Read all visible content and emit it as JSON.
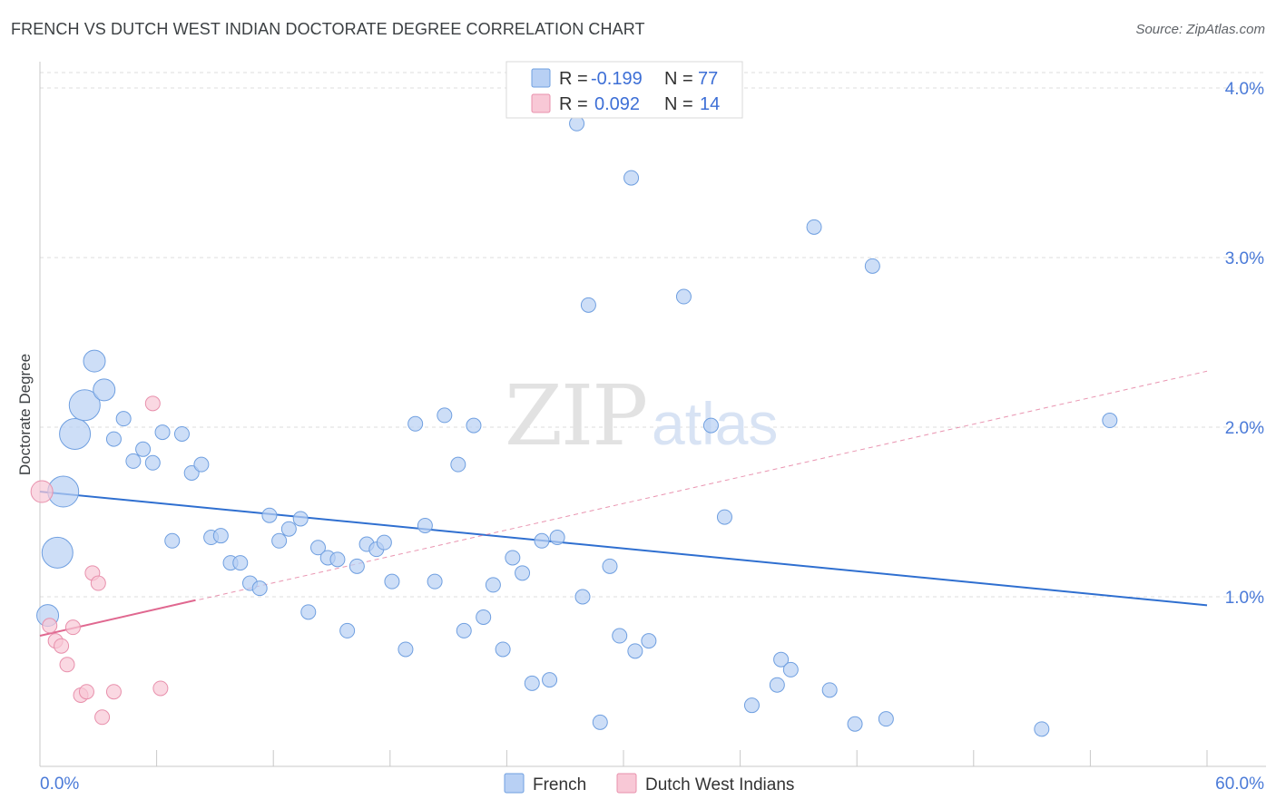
{
  "title": "FRENCH VS DUTCH WEST INDIAN DOCTORATE DEGREE CORRELATION CHART",
  "source": "Source: ZipAtlas.com",
  "chart_data": {
    "type": "scatter",
    "title": "FRENCH VS DUTCH WEST INDIAN DOCTORATE DEGREE CORRELATION CHART",
    "xlabel": "",
    "ylabel": "Doctorate Degree",
    "xlim": [
      0,
      60
    ],
    "ylim": [
      0,
      4.15
    ],
    "x_tick_labels": [
      "0.0%",
      "60.0%"
    ],
    "y_ticks": [
      1.0,
      2.0,
      3.0,
      4.0
    ],
    "y_tick_labels": [
      "1.0%",
      "2.0%",
      "3.0%",
      "4.0%"
    ],
    "grid": true,
    "watermark": "ZIPatlas",
    "colors": {
      "french_fill": "#b8d0f4",
      "french_stroke": "#6f9fe0",
      "french_line": "#2f6fd0",
      "dutch_fill": "#f8c8d6",
      "dutch_stroke": "#e890ac",
      "dutch_line": "#e06890",
      "tick_text": "#4a7ad8"
    },
    "legend": {
      "entries": [
        {
          "r_label": "R =",
          "r_value": "-0.199",
          "n_label": "N =",
          "n_value": "77"
        },
        {
          "r_label": "R =",
          "r_value": "0.092",
          "n_label": "N =",
          "n_value": "14"
        }
      ]
    },
    "series": [
      {
        "name": "French",
        "trend": {
          "x": [
            0,
            60
          ],
          "y": [
            1.62,
            0.95
          ]
        },
        "points": [
          {
            "x": 0.9,
            "y": 1.26,
            "s": 3
          },
          {
            "x": 1.2,
            "y": 1.62,
            "s": 3
          },
          {
            "x": 1.8,
            "y": 1.96,
            "s": 3
          },
          {
            "x": 2.3,
            "y": 2.13,
            "s": 3
          },
          {
            "x": 2.8,
            "y": 2.39,
            "s": 2
          },
          {
            "x": 3.3,
            "y": 2.22,
            "s": 2
          },
          {
            "x": 0.4,
            "y": 0.89,
            "s": 2
          },
          {
            "x": 3.8,
            "y": 1.93,
            "s": 1
          },
          {
            "x": 4.3,
            "y": 2.05,
            "s": 1
          },
          {
            "x": 4.8,
            "y": 1.8,
            "s": 1
          },
          {
            "x": 5.3,
            "y": 1.87,
            "s": 1
          },
          {
            "x": 5.8,
            "y": 1.79,
            "s": 1
          },
          {
            "x": 6.3,
            "y": 1.97,
            "s": 1
          },
          {
            "x": 6.8,
            "y": 1.33,
            "s": 1
          },
          {
            "x": 7.3,
            "y": 1.96,
            "s": 1
          },
          {
            "x": 7.8,
            "y": 1.73,
            "s": 1
          },
          {
            "x": 8.3,
            "y": 1.78,
            "s": 1
          },
          {
            "x": 8.8,
            "y": 1.35,
            "s": 1
          },
          {
            "x": 9.3,
            "y": 1.36,
            "s": 1
          },
          {
            "x": 9.8,
            "y": 1.2,
            "s": 1
          },
          {
            "x": 10.3,
            "y": 1.2,
            "s": 1
          },
          {
            "x": 10.8,
            "y": 1.08,
            "s": 1
          },
          {
            "x": 11.3,
            "y": 1.05,
            "s": 1
          },
          {
            "x": 11.8,
            "y": 1.48,
            "s": 1
          },
          {
            "x": 12.3,
            "y": 1.33,
            "s": 1
          },
          {
            "x": 12.8,
            "y": 1.4,
            "s": 1
          },
          {
            "x": 13.4,
            "y": 1.46,
            "s": 1
          },
          {
            "x": 13.8,
            "y": 0.91,
            "s": 1
          },
          {
            "x": 14.3,
            "y": 1.29,
            "s": 1
          },
          {
            "x": 14.8,
            "y": 1.23,
            "s": 1
          },
          {
            "x": 15.3,
            "y": 1.22,
            "s": 1
          },
          {
            "x": 15.8,
            "y": 0.8,
            "s": 1
          },
          {
            "x": 16.3,
            "y": 1.18,
            "s": 1
          },
          {
            "x": 16.8,
            "y": 1.31,
            "s": 1
          },
          {
            "x": 17.3,
            "y": 1.28,
            "s": 1
          },
          {
            "x": 17.7,
            "y": 1.32,
            "s": 1
          },
          {
            "x": 18.1,
            "y": 1.09,
            "s": 1
          },
          {
            "x": 18.8,
            "y": 0.69,
            "s": 1
          },
          {
            "x": 19.3,
            "y": 2.02,
            "s": 1
          },
          {
            "x": 19.8,
            "y": 1.42,
            "s": 1
          },
          {
            "x": 20.3,
            "y": 1.09,
            "s": 1
          },
          {
            "x": 20.8,
            "y": 2.07,
            "s": 1
          },
          {
            "x": 21.5,
            "y": 1.78,
            "s": 1
          },
          {
            "x": 21.8,
            "y": 0.8,
            "s": 1
          },
          {
            "x": 22.3,
            "y": 2.01,
            "s": 1
          },
          {
            "x": 22.8,
            "y": 0.88,
            "s": 1
          },
          {
            "x": 23.3,
            "y": 1.07,
            "s": 1
          },
          {
            "x": 23.8,
            "y": 0.69,
            "s": 1
          },
          {
            "x": 24.3,
            "y": 1.23,
            "s": 1
          },
          {
            "x": 24.8,
            "y": 1.14,
            "s": 1
          },
          {
            "x": 25.3,
            "y": 0.49,
            "s": 1
          },
          {
            "x": 25.8,
            "y": 1.33,
            "s": 1
          },
          {
            "x": 26.2,
            "y": 0.51,
            "s": 1
          },
          {
            "x": 26.6,
            "y": 1.35,
            "s": 1
          },
          {
            "x": 27.6,
            "y": 3.79,
            "s": 1
          },
          {
            "x": 27.9,
            "y": 1.0,
            "s": 1
          },
          {
            "x": 28.2,
            "y": 2.72,
            "s": 1
          },
          {
            "x": 28.8,
            "y": 0.26,
            "s": 1
          },
          {
            "x": 29.3,
            "y": 1.18,
            "s": 1
          },
          {
            "x": 29.8,
            "y": 0.77,
            "s": 1
          },
          {
            "x": 30.4,
            "y": 3.47,
            "s": 1
          },
          {
            "x": 30.6,
            "y": 0.68,
            "s": 1
          },
          {
            "x": 31.3,
            "y": 0.74,
            "s": 1
          },
          {
            "x": 33.1,
            "y": 2.77,
            "s": 1
          },
          {
            "x": 34.5,
            "y": 2.01,
            "s": 1
          },
          {
            "x": 35.2,
            "y": 1.47,
            "s": 1
          },
          {
            "x": 36.6,
            "y": 0.36,
            "s": 1
          },
          {
            "x": 37.9,
            "y": 0.48,
            "s": 1
          },
          {
            "x": 38.1,
            "y": 0.63,
            "s": 1
          },
          {
            "x": 38.6,
            "y": 0.57,
            "s": 1
          },
          {
            "x": 39.8,
            "y": 3.18,
            "s": 1
          },
          {
            "x": 40.6,
            "y": 0.45,
            "s": 1
          },
          {
            "x": 41.9,
            "y": 0.25,
            "s": 1
          },
          {
            "x": 42.8,
            "y": 2.95,
            "s": 1
          },
          {
            "x": 43.5,
            "y": 0.28,
            "s": 1
          },
          {
            "x": 51.5,
            "y": 0.22,
            "s": 1
          },
          {
            "x": 55.0,
            "y": 2.04,
            "s": 1
          }
        ]
      },
      {
        "name": "Dutch West Indians",
        "trend": {
          "x": [
            0,
            8
          ],
          "y": [
            0.77,
            0.98
          ]
        },
        "trend_extended": {
          "x": [
            0,
            60
          ],
          "y": [
            0.77,
            2.33
          ]
        },
        "points": [
          {
            "x": 0.1,
            "y": 1.62,
            "s": 2
          },
          {
            "x": 0.5,
            "y": 0.83,
            "s": 1
          },
          {
            "x": 0.8,
            "y": 0.74,
            "s": 1
          },
          {
            "x": 1.1,
            "y": 0.71,
            "s": 1
          },
          {
            "x": 1.4,
            "y": 0.6,
            "s": 1
          },
          {
            "x": 1.7,
            "y": 0.82,
            "s": 1
          },
          {
            "x": 2.1,
            "y": 0.42,
            "s": 1
          },
          {
            "x": 2.4,
            "y": 0.44,
            "s": 1
          },
          {
            "x": 2.7,
            "y": 1.14,
            "s": 1
          },
          {
            "x": 3.0,
            "y": 1.08,
            "s": 1
          },
          {
            "x": 3.2,
            "y": 0.29,
            "s": 1
          },
          {
            "x": 3.8,
            "y": 0.44,
            "s": 1
          },
          {
            "x": 5.8,
            "y": 2.14,
            "s": 1
          },
          {
            "x": 6.2,
            "y": 0.46,
            "s": 1
          }
        ]
      }
    ]
  }
}
